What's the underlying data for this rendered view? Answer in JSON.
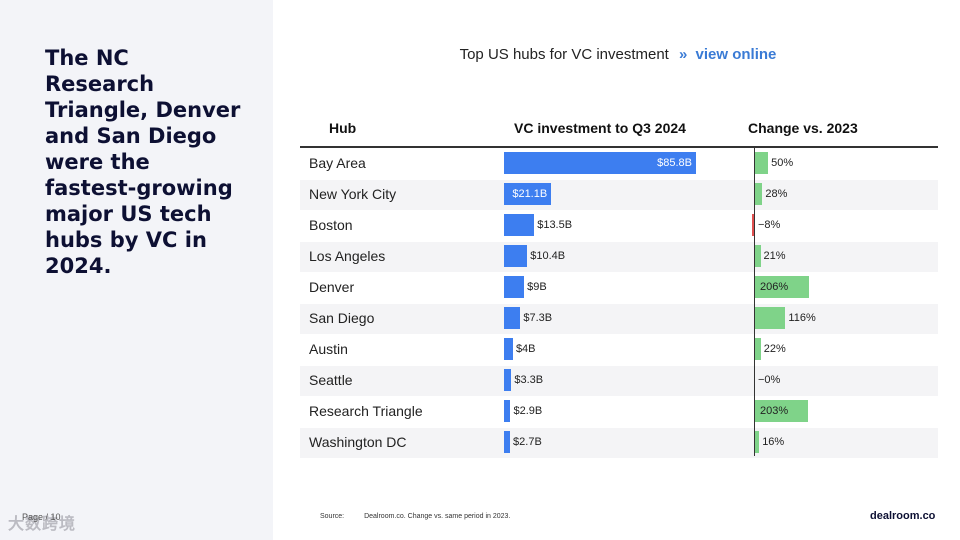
{
  "headline": "The NC Research Triangle, Denver and San Diego were the fastest-growing major US tech hubs by VC in 2024.",
  "page_label": "Page / 10",
  "watermark": "大数跨境",
  "chart_title": {
    "text": "Top US hubs for VC investment",
    "separator": "»",
    "link": "view online"
  },
  "source": {
    "label": "Source:",
    "text": "Dealroom.co. Change vs. same period in  2023."
  },
  "logo": "dealroom.co",
  "colors": {
    "bar": "#3d7ef0",
    "positive": "#7fd389",
    "negative": "#e05050",
    "row_alt": "#f4f4f6"
  },
  "chart_data": {
    "type": "table",
    "columns": [
      "Hub",
      "VC investment to Q3 2024",
      "Change vs. 2023"
    ],
    "rows": [
      {
        "hub": "Bay Area",
        "vc": 85.8,
        "vc_label": "$85.8B",
        "change": 50,
        "change_label": "50%"
      },
      {
        "hub": "New York City",
        "vc": 21.1,
        "vc_label": "$21.1B",
        "change": 28,
        "change_label": "28%"
      },
      {
        "hub": "Boston",
        "vc": 13.5,
        "vc_label": "$13.5B",
        "change": -8,
        "change_label": "−8%"
      },
      {
        "hub": "Los Angeles",
        "vc": 10.4,
        "vc_label": "$10.4B",
        "change": 21,
        "change_label": "21%"
      },
      {
        "hub": "Denver",
        "vc": 9,
        "vc_label": "$9B",
        "change": 206,
        "change_label": "206%"
      },
      {
        "hub": "San Diego",
        "vc": 7.3,
        "vc_label": "$7.3B",
        "change": 116,
        "change_label": "116%"
      },
      {
        "hub": "Austin",
        "vc": 4,
        "vc_label": "$4B",
        "change": 22,
        "change_label": "22%"
      },
      {
        "hub": "Seattle",
        "vc": 3.3,
        "vc_label": "$3.3B",
        "change": 0,
        "change_label": "−0%"
      },
      {
        "hub": "Research Triangle",
        "vc": 2.9,
        "vc_label": "$2.9B",
        "change": 203,
        "change_label": "203%"
      },
      {
        "hub": "Washington DC",
        "vc": 2.7,
        "vc_label": "$2.7B",
        "change": 16,
        "change_label": "16%"
      }
    ],
    "vc_max": 85.8,
    "change_max": 206
  }
}
